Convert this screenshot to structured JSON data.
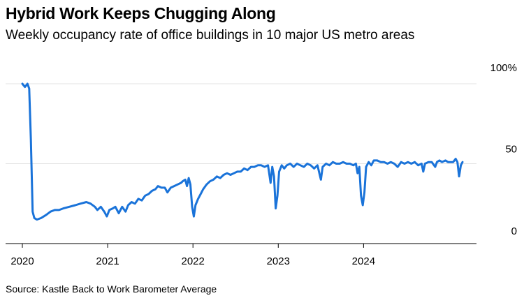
{
  "chart_data": {
    "type": "line",
    "title": "Hybrid Work Keeps Chugging Along",
    "subtitle": "Weekly occupancy rate of office buildings in 10 major US metro areas",
    "source": "Source: Kastle Back to Work Barometer Average",
    "xlabel": "",
    "ylabel": "",
    "x_ticks": [
      "2020",
      "2021",
      "2022",
      "2023",
      "2024"
    ],
    "y_ticks": [
      "100%",
      "50",
      "0"
    ],
    "ylim": [
      0,
      100
    ],
    "xlim": [
      2019.95,
      2025.25
    ],
    "grid": true,
    "line_color": "#1a73d9",
    "series": [
      {
        "values": [
          [
            2020.0,
            100
          ],
          [
            2020.03,
            98
          ],
          [
            2020.06,
            100
          ],
          [
            2020.08,
            97
          ],
          [
            2020.1,
            65
          ],
          [
            2020.12,
            20
          ],
          [
            2020.14,
            16
          ],
          [
            2020.17,
            15
          ],
          [
            2020.22,
            16
          ],
          [
            2020.28,
            18
          ],
          [
            2020.33,
            20
          ],
          [
            2020.38,
            21
          ],
          [
            2020.43,
            21
          ],
          [
            2020.48,
            22
          ],
          [
            2020.55,
            23
          ],
          [
            2020.62,
            24
          ],
          [
            2020.68,
            25
          ],
          [
            2020.75,
            26
          ],
          [
            2020.8,
            25
          ],
          [
            2020.85,
            23
          ],
          [
            2020.88,
            21
          ],
          [
            2020.92,
            23
          ],
          [
            2020.96,
            20
          ],
          [
            2020.99,
            17
          ],
          [
            2021.02,
            21
          ],
          [
            2021.06,
            22
          ],
          [
            2021.09,
            23
          ],
          [
            2021.13,
            19
          ],
          [
            2021.17,
            23
          ],
          [
            2021.21,
            20
          ],
          [
            2021.24,
            24
          ],
          [
            2021.28,
            26
          ],
          [
            2021.32,
            25
          ],
          [
            2021.36,
            28
          ],
          [
            2021.4,
            27
          ],
          [
            2021.44,
            30
          ],
          [
            2021.48,
            31
          ],
          [
            2021.52,
            33
          ],
          [
            2021.56,
            34
          ],
          [
            2021.59,
            36
          ],
          [
            2021.63,
            35
          ],
          [
            2021.67,
            35
          ],
          [
            2021.7,
            32
          ],
          [
            2021.74,
            35
          ],
          [
            2021.78,
            36
          ],
          [
            2021.82,
            37
          ],
          [
            2021.86,
            38
          ],
          [
            2021.88,
            39
          ],
          [
            2021.91,
            40
          ],
          [
            2021.93,
            36
          ],
          [
            2021.95,
            41
          ],
          [
            2021.97,
            37
          ],
          [
            2021.99,
            23
          ],
          [
            2022.01,
            17
          ],
          [
            2022.03,
            24
          ],
          [
            2022.06,
            28
          ],
          [
            2022.09,
            31
          ],
          [
            2022.12,
            34
          ],
          [
            2022.16,
            37
          ],
          [
            2022.2,
            39
          ],
          [
            2022.24,
            40
          ],
          [
            2022.28,
            42
          ],
          [
            2022.32,
            41
          ],
          [
            2022.36,
            43
          ],
          [
            2022.4,
            44
          ],
          [
            2022.44,
            43
          ],
          [
            2022.48,
            44
          ],
          [
            2022.52,
            45
          ],
          [
            2022.56,
            45
          ],
          [
            2022.6,
            47
          ],
          [
            2022.64,
            46
          ],
          [
            2022.68,
            48
          ],
          [
            2022.72,
            48
          ],
          [
            2022.76,
            49
          ],
          [
            2022.8,
            49
          ],
          [
            2022.84,
            48
          ],
          [
            2022.88,
            49
          ],
          [
            2022.91,
            38
          ],
          [
            2022.93,
            48
          ],
          [
            2022.95,
            42
          ],
          [
            2022.97,
            22
          ],
          [
            2022.99,
            30
          ],
          [
            2023.01,
            45
          ],
          [
            2023.04,
            49
          ],
          [
            2023.07,
            47
          ],
          [
            2023.1,
            49
          ],
          [
            2023.14,
            50
          ],
          [
            2023.18,
            48
          ],
          [
            2023.22,
            50
          ],
          [
            2023.26,
            49
          ],
          [
            2023.3,
            48
          ],
          [
            2023.34,
            50
          ],
          [
            2023.38,
            49
          ],
          [
            2023.42,
            47
          ],
          [
            2023.46,
            49
          ],
          [
            2023.5,
            40
          ],
          [
            2023.52,
            48
          ],
          [
            2023.56,
            50
          ],
          [
            2023.6,
            49
          ],
          [
            2023.64,
            51
          ],
          [
            2023.68,
            50
          ],
          [
            2023.72,
            50
          ],
          [
            2023.76,
            51
          ],
          [
            2023.8,
            50
          ],
          [
            2023.84,
            50
          ],
          [
            2023.88,
            49
          ],
          [
            2023.91,
            50
          ],
          [
            2023.93,
            44
          ],
          [
            2023.95,
            48
          ],
          [
            2023.97,
            30
          ],
          [
            2023.99,
            24
          ],
          [
            2024.01,
            32
          ],
          [
            2024.03,
            48
          ],
          [
            2024.06,
            51
          ],
          [
            2024.09,
            49
          ],
          [
            2024.12,
            52
          ],
          [
            2024.16,
            52
          ],
          [
            2024.2,
            51
          ],
          [
            2024.24,
            51
          ],
          [
            2024.28,
            50
          ],
          [
            2024.32,
            51
          ],
          [
            2024.36,
            50
          ],
          [
            2024.4,
            48
          ],
          [
            2024.44,
            51
          ],
          [
            2024.48,
            50
          ],
          [
            2024.52,
            51
          ],
          [
            2024.56,
            50
          ],
          [
            2024.6,
            51
          ],
          [
            2024.64,
            49
          ],
          [
            2024.68,
            50
          ],
          [
            2024.7,
            45
          ],
          [
            2024.72,
            50
          ],
          [
            2024.76,
            51
          ],
          [
            2024.8,
            51
          ],
          [
            2024.84,
            48
          ],
          [
            2024.86,
            51
          ],
          [
            2024.89,
            52
          ],
          [
            2024.92,
            51
          ],
          [
            2024.96,
            52
          ],
          [
            2024.99,
            51
          ],
          [
            2025.02,
            51
          ],
          [
            2025.05,
            51
          ],
          [
            2025.08,
            53
          ],
          [
            2025.1,
            51
          ],
          [
            2025.12,
            42
          ],
          [
            2025.14,
            49
          ],
          [
            2025.16,
            51
          ]
        ]
      }
    ]
  }
}
